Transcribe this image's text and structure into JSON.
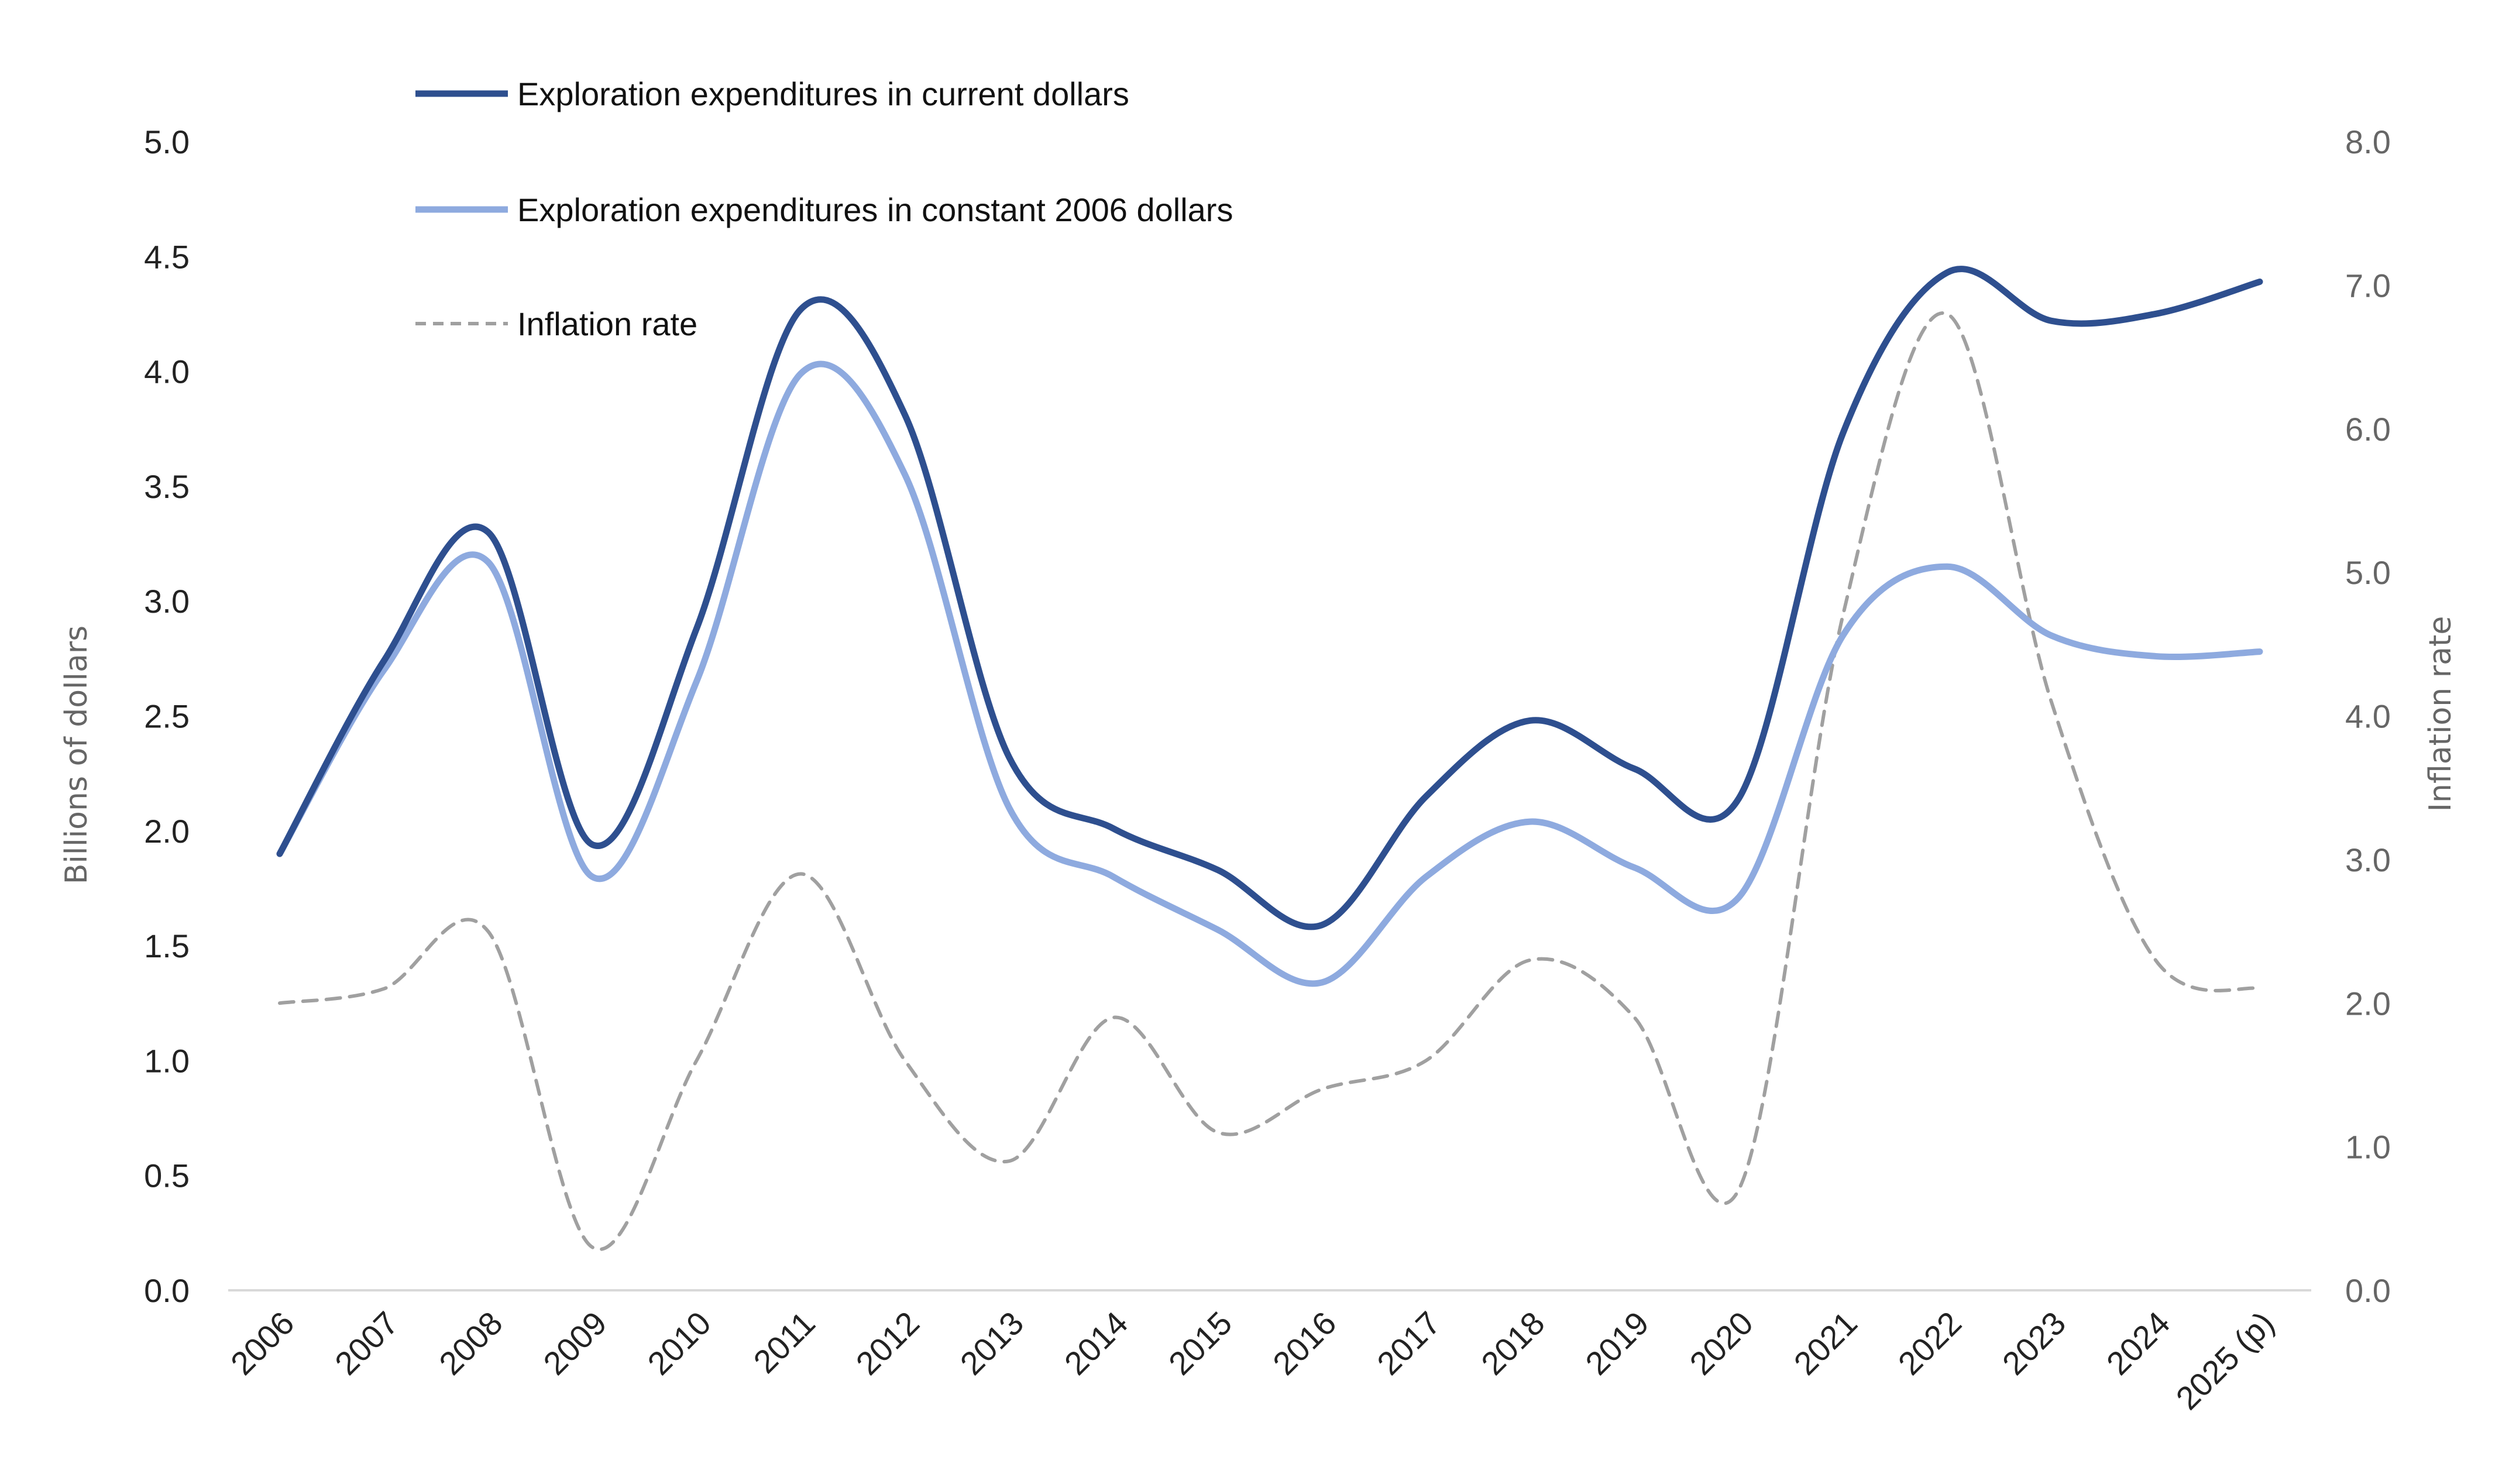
{
  "chart_data": {
    "type": "line",
    "title": "",
    "x": [
      "2006",
      "2007",
      "2008",
      "2009",
      "2010",
      "2011",
      "2012",
      "2013",
      "2014",
      "2015",
      "2016",
      "2017",
      "2018",
      "2019",
      "2020",
      "2021",
      "2022",
      "2023",
      "2024",
      "2025 (p)"
    ],
    "ylabel": "Billions of dollars",
    "y2label": "Inflation rate",
    "ylim": [
      0,
      5
    ],
    "yticks": [
      "0.0",
      "0.5",
      "1.0",
      "1.5",
      "2.0",
      "2.5",
      "3.0",
      "3.5",
      "4.0",
      "4.5",
      "5.0"
    ],
    "y2lim": [
      0,
      8
    ],
    "y2ticks": [
      "0.0",
      "1.0",
      "2.0",
      "3.0",
      "4.0",
      "5.0",
      "6.0",
      "7.0",
      "8.0"
    ],
    "grid": false,
    "smooth": true,
    "legend_position": "top-left",
    "series": [
      {
        "name": "Exploration expenditures in current dollars",
        "axis": "left",
        "color": "#2E4F8F",
        "style": "solid",
        "values": [
          1.9,
          2.74,
          3.3,
          1.94,
          2.88,
          4.27,
          3.81,
          2.32,
          2.01,
          1.83,
          1.59,
          2.15,
          2.48,
          2.27,
          2.14,
          3.73,
          4.43,
          4.22,
          4.25,
          4.39
        ]
      },
      {
        "name": "Exploration expenditures in constant 2006 dollars",
        "axis": "left",
        "color": "#8EAADF",
        "style": "solid",
        "values": [
          1.9,
          2.7,
          3.17,
          1.8,
          2.65,
          3.99,
          3.55,
          2.1,
          1.8,
          1.57,
          1.34,
          1.8,
          2.04,
          1.84,
          1.71,
          2.85,
          3.15,
          2.85,
          2.76,
          2.78
        ]
      },
      {
        "name": "Inflation rate",
        "axis": "right",
        "color": "#A0A0A0",
        "style": "dashed",
        "values": [
          2.0,
          2.1,
          2.5,
          0.3,
          1.6,
          2.9,
          1.6,
          0.9,
          1.9,
          1.1,
          1.4,
          1.6,
          2.3,
          1.9,
          0.7,
          4.7,
          6.8,
          4.1,
          2.3,
          2.1
        ]
      }
    ]
  }
}
